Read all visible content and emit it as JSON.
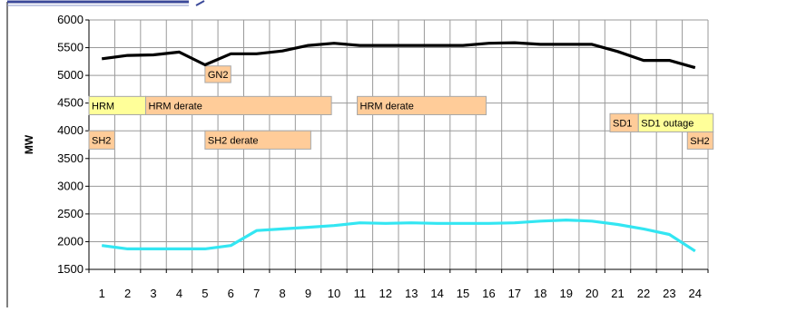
{
  "chart_data": {
    "type": "line",
    "ylabel": "MW",
    "xlabel": "",
    "ylim": [
      1500,
      6000
    ],
    "yticks": [
      1500,
      2000,
      2500,
      3000,
      3500,
      4000,
      4500,
      5000,
      5500,
      6000
    ],
    "grid": true,
    "categories": [
      "1",
      "2",
      "3",
      "4",
      "5",
      "6",
      "7",
      "8",
      "9",
      "10",
      "11",
      "12",
      "13",
      "14",
      "15",
      "16",
      "17",
      "18",
      "19",
      "20",
      "21",
      "22",
      "23",
      "24"
    ],
    "series": [
      {
        "color": "#000000",
        "values": [
          5300,
          5360,
          5370,
          5420,
          5190,
          5390,
          5390,
          5440,
          5540,
          5580,
          5540,
          5540,
          5540,
          5540,
          5540,
          5580,
          5590,
          5560,
          5560,
          5560,
          5430,
          5270,
          5270,
          5140
        ]
      },
      {
        "color": "#33E6F2",
        "values": [
          1930,
          1870,
          1870,
          1870,
          1870,
          1930,
          2200,
          2230,
          2260,
          2290,
          2340,
          2330,
          2340,
          2330,
          2330,
          2330,
          2340,
          2370,
          2390,
          2370,
          2310,
          2230,
          2130,
          1830
        ]
      }
    ],
    "annotations": [
      {
        "text": "GN2",
        "x_start": 5.0,
        "x_end": 6.0,
        "y_low": 4870,
        "y_high": 5170,
        "fill": "#FFCC99"
      },
      {
        "text": "HRM",
        "x_start": 0.5,
        "x_end": 2.7,
        "y_low": 4290,
        "y_high": 4620,
        "fill": "#FFFF99"
      },
      {
        "text": "HRM derate",
        "x_start": 2.7,
        "x_end": 9.9,
        "y_low": 4290,
        "y_high": 4620,
        "fill": "#FFCC99"
      },
      {
        "text": "HRM derate",
        "x_start": 10.9,
        "x_end": 15.9,
        "y_low": 4290,
        "y_high": 4620,
        "fill": "#FFCC99"
      },
      {
        "text": "SH2",
        "x_start": 0.5,
        "x_end": 1.5,
        "y_low": 3670,
        "y_high": 4000,
        "fill": "#FFCC99"
      },
      {
        "text": "SH2 derate",
        "x_start": 5.0,
        "x_end": 9.1,
        "y_low": 3670,
        "y_high": 4000,
        "fill": "#FFCC99"
      },
      {
        "text": "SD1",
        "x_start": 20.7,
        "x_end": 21.8,
        "y_low": 3980,
        "y_high": 4310,
        "fill": "#FFCC99"
      },
      {
        "text": "SD1 outage",
        "x_start": 21.8,
        "x_end": 24.7,
        "y_low": 3980,
        "y_high": 4310,
        "fill": "#FFFF99"
      },
      {
        "text": "SH2",
        "x_start": 23.7,
        "x_end": 24.7,
        "y_low": 3670,
        "y_high": 3980,
        "fill": "#FFCC99"
      }
    ]
  }
}
